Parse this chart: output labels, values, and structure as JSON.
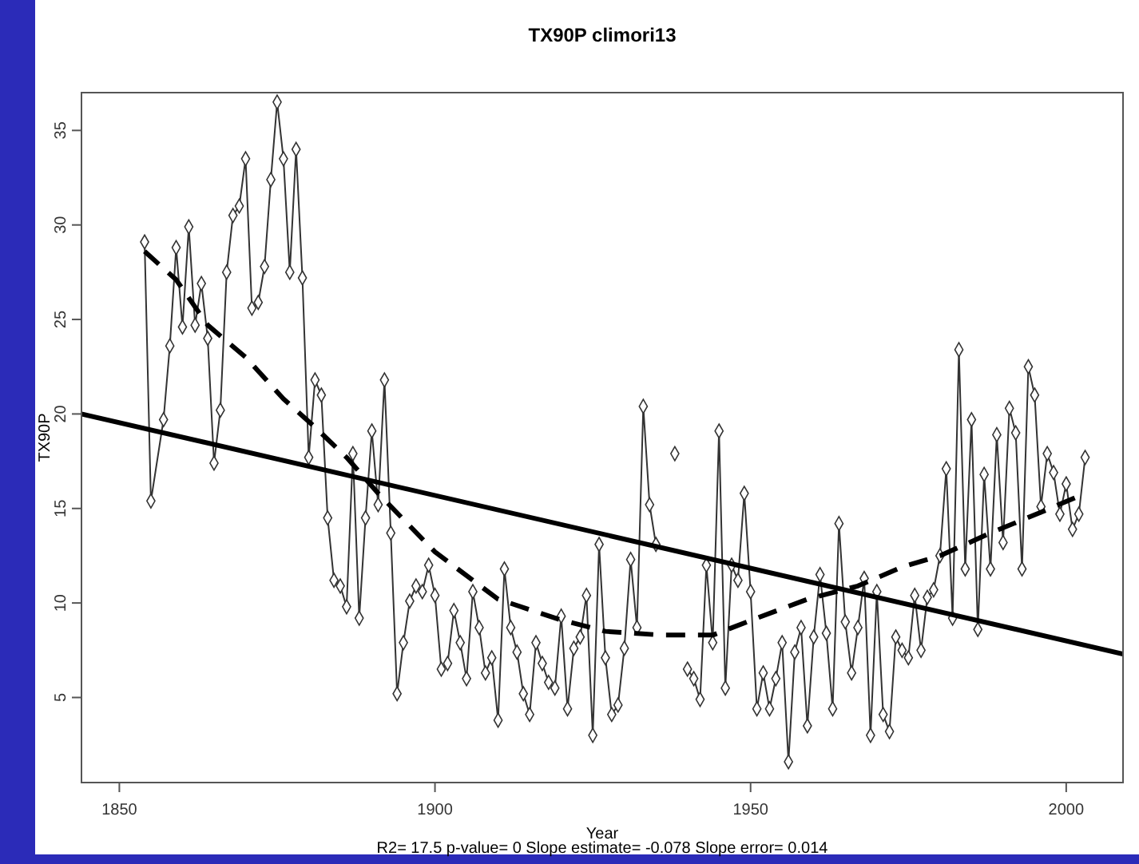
{
  "chart_data": {
    "type": "line",
    "title": "TX90P   climori13",
    "xlabel": "Year",
    "ylabel": "TX90P",
    "annotations": [
      "R2= 17.5  p-value= 0  Slope estimate= -0.078  Slope error= 0.014"
    ],
    "xlim": [
      1844,
      2009
    ],
    "ylim": [
      0.5,
      37
    ],
    "xticks": [
      1850,
      1900,
      1950,
      2000
    ],
    "yticks": [
      5,
      10,
      15,
      20,
      25,
      30,
      35
    ],
    "series": [
      {
        "color": "#333333",
        "marker": "diamond",
        "line_style": "solid",
        "x": [
          1854,
          1855,
          1857,
          1858,
          1859,
          1860,
          1861,
          1862,
          1863,
          1864,
          1865,
          1866,
          1867,
          1868,
          1869,
          1870,
          1871,
          1872,
          1873,
          1874,
          1875,
          1876,
          1877,
          1878,
          1879,
          1880,
          1881,
          1882,
          1883,
          1884,
          1885,
          1886,
          1887,
          1888,
          1889,
          1890,
          1891,
          1892,
          1893,
          1894,
          1895,
          1896,
          1897,
          1898,
          1899,
          1900,
          1901,
          1902,
          1903,
          1904,
          1905,
          1906,
          1907,
          1908,
          1909,
          1910,
          1911,
          1912,
          1913,
          1914,
          1915,
          1916,
          1917,
          1918,
          1919,
          1920,
          1921,
          1922,
          1923,
          1924,
          1925,
          1926,
          1927,
          1928,
          1929,
          1930,
          1931,
          1932,
          1933,
          1934,
          1935,
          1936,
          1937,
          1938,
          1939,
          1940,
          1941,
          1942,
          1943,
          1944,
          1945,
          1946,
          1947,
          1948,
          1949,
          1950,
          1951,
          1952,
          1953,
          1954,
          1955,
          1956,
          1957,
          1958,
          1959,
          1960,
          1961,
          1962,
          1963,
          1964,
          1965,
          1966,
          1967,
          1968,
          1969,
          1970,
          1971,
          1972,
          1973,
          1974,
          1975,
          1976,
          1977,
          1978,
          1979,
          1980,
          1981,
          1982,
          1983,
          1984,
          1985,
          1986,
          1987,
          1988,
          1989,
          1990,
          1991,
          1992,
          1993,
          1994,
          1995,
          1996,
          1997,
          1998,
          1999,
          2000,
          2001,
          2002,
          2003
        ],
        "values": [
          29.1,
          15.4,
          19.7,
          23.6,
          28.8,
          24.6,
          29.9,
          24.7,
          26.9,
          24.0,
          17.4,
          20.2,
          27.5,
          30.5,
          31.0,
          33.5,
          25.6,
          25.9,
          27.8,
          32.4,
          36.5,
          33.5,
          27.5,
          34.0,
          27.2,
          17.7,
          21.8,
          21.0,
          14.5,
          11.2,
          10.9,
          9.8,
          17.9,
          9.2,
          14.5,
          19.1,
          15.2,
          21.8,
          13.7,
          5.2,
          7.9,
          10.1,
          10.9,
          10.6,
          12.0,
          10.4,
          6.5,
          6.8,
          9.6,
          7.9,
          6.0,
          10.6,
          8.7,
          6.3,
          7.1,
          3.8,
          11.8,
          8.7,
          7.4,
          5.2,
          4.1,
          7.9,
          6.8,
          5.8,
          5.5,
          9.3,
          4.4,
          7.6,
          8.2,
          10.4,
          3.0,
          13.1,
          7.1,
          4.1,
          4.6,
          7.6,
          12.3,
          8.7,
          20.4,
          15.2,
          13.1,
          null,
          null,
          17.9,
          null,
          6.5,
          6.0,
          4.9,
          12.0,
          7.9,
          19.1,
          5.5,
          12.0,
          11.2,
          15.8,
          10.6,
          4.4,
          6.3,
          4.4,
          6.0,
          7.9,
          1.6,
          7.4,
          8.7,
          3.5,
          8.2,
          11.5,
          8.4,
          4.4,
          14.2,
          9.0,
          6.3,
          8.7,
          11.3,
          3.0,
          10.6,
          4.1,
          3.2,
          8.2,
          7.5,
          7.1,
          10.4,
          7.5,
          10.3,
          10.7,
          12.5,
          17.1,
          9.2,
          23.4,
          11.8,
          19.7,
          8.6,
          16.8,
          11.8,
          18.9,
          13.2,
          20.3,
          19.0,
          11.8,
          22.5,
          21.0,
          15.1,
          17.9,
          16.9,
          14.7,
          16.3,
          13.9,
          14.7,
          17.7
        ]
      },
      {
        "type": "line",
        "color": "#000000",
        "marker": "none",
        "line_style": "solid",
        "x": [
          1844,
          2009
        ],
        "values": [
          20.0,
          7.3
        ]
      },
      {
        "type": "line",
        "color": "#000000",
        "marker": "none",
        "line_style": "dashed",
        "x": [
          1854,
          1859,
          1864,
          1870,
          1876,
          1881,
          1886,
          1891,
          1900,
          1910,
          1920,
          1927,
          1936,
          1944,
          1951,
          1959,
          1967,
          1974,
          1980,
          1988,
          1996,
          2003
        ],
        "values": [
          28.6,
          27.1,
          24.7,
          23.0,
          20.8,
          19.3,
          17.7,
          15.8,
          12.7,
          10.2,
          9.1,
          8.5,
          8.3,
          8.3,
          9.2,
          10.2,
          10.9,
          11.9,
          12.5,
          13.7,
          14.8,
          15.8
        ]
      }
    ]
  }
}
